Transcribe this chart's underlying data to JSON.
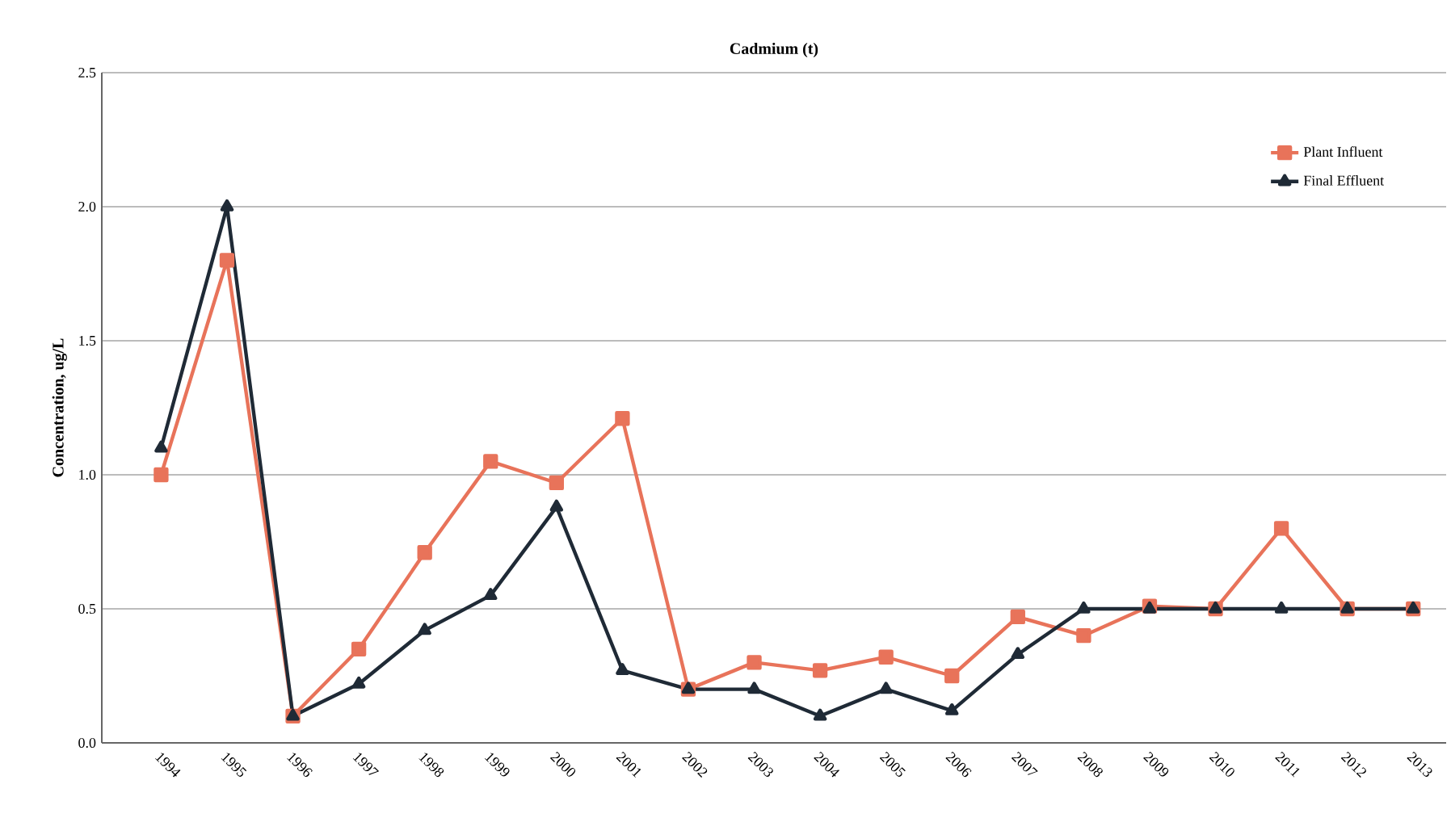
{
  "chart_data": {
    "type": "line",
    "title": "Cadmium (t)",
    "ylabel": "Concentration, ug/L",
    "categories": [
      "1994",
      "1995",
      "1996",
      "1997",
      "1998",
      "1999",
      "2000",
      "2001",
      "2002",
      "2003",
      "2004",
      "2005",
      "2006",
      "2007",
      "2008",
      "2009",
      "2010",
      "2011",
      "2012",
      "2013"
    ],
    "series": [
      {
        "name": "Plant Influent",
        "color": "#e8735a",
        "marker": "square",
        "values": [
          1.0,
          1.8,
          0.1,
          0.35,
          0.71,
          1.05,
          0.97,
          1.21,
          0.2,
          0.3,
          0.27,
          0.32,
          0.25,
          0.47,
          0.4,
          0.51,
          0.5,
          0.8,
          0.5,
          0.5
        ]
      },
      {
        "name": "Final Effluent",
        "color": "#1f2a36",
        "marker": "triangle",
        "values": [
          1.1,
          2.0,
          0.1,
          0.22,
          0.42,
          0.55,
          0.88,
          0.27,
          0.2,
          0.2,
          0.1,
          0.2,
          0.12,
          0.33,
          0.5,
          0.5,
          0.5,
          0.5,
          0.5,
          0.5
        ]
      }
    ],
    "ylim": [
      0,
      2.5
    ],
    "yticks": [
      {
        "value": 0,
        "label": "0.0"
      },
      {
        "value": 0.5,
        "label": "0.5"
      },
      {
        "value": 1,
        "label": "1.0"
      },
      {
        "value": 1.5,
        "label": "1.5"
      },
      {
        "value": 2,
        "label": "2.0"
      },
      {
        "value": 2.5,
        "label": "2.5"
      }
    ],
    "grid": "y",
    "legend": "top right",
    "line_style": "solid"
  }
}
